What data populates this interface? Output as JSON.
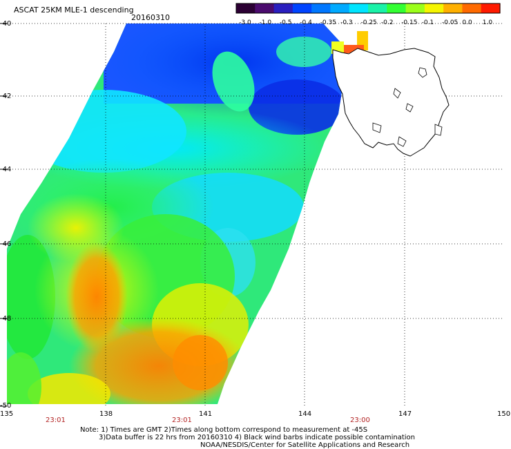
{
  "header": {
    "title": "ASCAT 25KM MLE-1 descending",
    "date": "20160310"
  },
  "colorbar": {
    "labels": [
      "-3.0",
      "-1.0",
      "-0.5",
      "-0.4",
      "-0.35",
      "-0.3",
      "-0.25",
      "-0.2",
      "-0.15",
      "-0.1",
      "-0.05",
      "0.0",
      "1.0"
    ],
    "colors": [
      "#2b0033",
      "#4b0b6e",
      "#2a1fbf",
      "#0044ff",
      "#0077ff",
      "#00aaff",
      "#00e5ff",
      "#1af2a8",
      "#33ff33",
      "#9bff1a",
      "#f5f500",
      "#ffb000",
      "#ff6a00",
      "#ff1a00"
    ]
  },
  "axes": {
    "lat_labels": [
      "-40",
      "-42",
      "-44",
      "-46",
      "-48",
      "-50"
    ],
    "lon_labels": [
      "135",
      "138",
      "141",
      "144",
      "147",
      "150"
    ],
    "time_labels": [
      "23:01",
      "23:01",
      "23:00"
    ]
  },
  "notes": {
    "line1": "Note: 1) Times are GMT 2)Times along bottom correspond to measurement at -45S",
    "line2": "3)Data buffer is 22 hrs from 20160310 4) Black wind barbs indicate possible contamination",
    "line3": "NOAA/NESDIS/Center for Satellite Applications and Research"
  },
  "legend_colors": {
    "time_label": "#b22222",
    "grid": "#000000"
  }
}
